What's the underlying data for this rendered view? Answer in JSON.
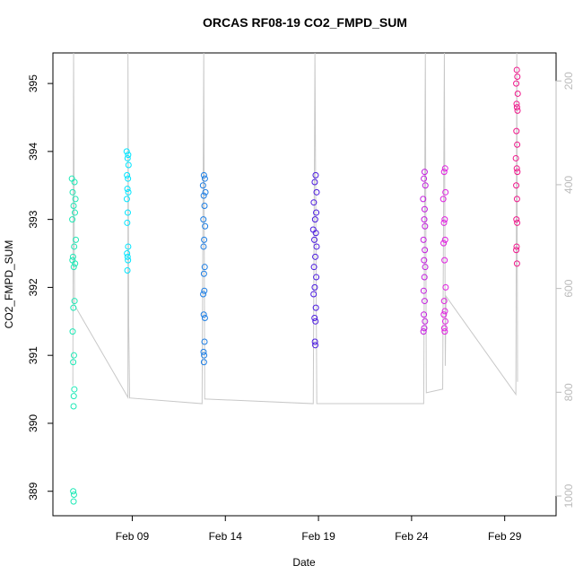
{
  "chart_data": {
    "type": "scatter",
    "title": "ORCAS RF08-19 CO2_FMPD_SUM",
    "x_label": "Date",
    "y_label": "CO2_FMPD_SUM",
    "xlim": [
      4.74,
      31.76
    ],
    "xticks": [
      {
        "value": 9,
        "label": "Feb 09"
      },
      {
        "value": 14,
        "label": "Feb 14"
      },
      {
        "value": 19,
        "label": "Feb 19"
      },
      {
        "value": 24,
        "label": "Feb 24"
      },
      {
        "value": 29,
        "label": "Feb 29"
      }
    ],
    "ylim": [
      388.64,
      395.45
    ],
    "yticks": [
      389,
      390,
      391,
      392,
      393,
      394,
      395
    ],
    "y2lim": [
      1038,
      146
    ],
    "y2ticks": [
      200,
      400,
      600,
      800,
      1000
    ],
    "y2_color": "#bbbbbb",
    "series": [
      {
        "color": "#1de9b6",
        "x": [
          5.76,
          5.9,
          5.8,
          5.95,
          5.85,
          5.92,
          5.78,
          5.97,
          5.88,
          5.82,
          5.93,
          5.86,
          5.79,
          5.9,
          5.84,
          5.8,
          5.87,
          5.83,
          5.89,
          5.86,
          5.85,
          5.83,
          5.87,
          5.85
        ],
        "values": [
          393.6,
          393.55,
          393.4,
          393.3,
          393.2,
          393.1,
          393.0,
          392.7,
          392.6,
          392.45,
          392.35,
          392.3,
          392.4,
          391.8,
          391.7,
          391.35,
          391.0,
          390.9,
          390.5,
          390.4,
          390.25,
          389.0,
          388.95,
          388.85
        ]
      },
      {
        "color": "#00e5ff",
        "x": [
          8.7,
          8.78,
          8.75,
          8.8,
          8.72,
          8.77,
          8.74,
          8.79,
          8.71,
          8.76,
          8.73,
          8.78,
          8.72,
          8.75,
          8.77,
          8.74
        ],
        "values": [
          394.0,
          393.95,
          393.9,
          393.8,
          393.65,
          393.6,
          393.45,
          393.4,
          393.3,
          393.1,
          392.95,
          392.6,
          392.5,
          392.45,
          392.4,
          392.25
        ]
      },
      {
        "color": "#1e7fe5",
        "x": [
          12.85,
          12.9,
          12.8,
          12.93,
          12.84,
          12.88,
          12.82,
          12.91,
          12.86,
          12.83,
          12.89,
          12.85,
          12.87,
          12.81,
          12.84,
          12.9,
          12.88,
          12.83,
          12.86,
          12.85
        ],
        "values": [
          393.65,
          393.6,
          393.5,
          393.4,
          393.35,
          393.2,
          393.0,
          392.9,
          392.7,
          392.6,
          392.3,
          392.2,
          391.95,
          391.9,
          391.6,
          391.55,
          391.2,
          391.05,
          391.0,
          390.9
        ]
      },
      {
        "color": "#4b1be0",
        "x": [
          18.85,
          18.8,
          18.9,
          18.75,
          18.88,
          18.82,
          18.72,
          18.86,
          18.78,
          18.9,
          18.83,
          18.76,
          18.88,
          18.8,
          18.74,
          18.86,
          18.79,
          18.84,
          18.81,
          18.83
        ],
        "values": [
          393.65,
          393.55,
          393.4,
          393.25,
          393.1,
          393.0,
          392.85,
          392.8,
          392.7,
          392.6,
          392.45,
          392.3,
          392.15,
          392.0,
          391.9,
          391.7,
          391.55,
          391.5,
          391.2,
          391.15
        ]
      },
      {
        "color": "#c41fe0",
        "x": [
          24.7,
          24.66,
          24.74,
          24.62,
          24.7,
          24.68,
          24.72,
          24.64,
          24.71,
          24.67,
          24.73,
          24.69,
          24.65,
          24.7,
          24.66,
          24.72,
          24.68,
          24.64
        ],
        "values": [
          393.7,
          393.6,
          393.5,
          393.3,
          393.15,
          393.0,
          392.9,
          392.7,
          392.55,
          392.4,
          392.3,
          392.15,
          391.95,
          391.8,
          391.6,
          391.5,
          391.4,
          391.35
        ]
      },
      {
        "color": "#e020e0",
        "x": [
          25.8,
          25.75,
          25.82,
          25.7,
          25.78,
          25.74,
          25.8,
          25.72,
          25.77,
          25.83,
          25.75,
          25.79,
          25.73,
          25.81,
          25.76,
          25.78
        ],
        "values": [
          393.75,
          393.7,
          393.4,
          393.3,
          393.0,
          392.95,
          392.7,
          392.65,
          392.4,
          392.0,
          391.8,
          391.65,
          391.6,
          391.5,
          391.4,
          391.35
        ]
      },
      {
        "color": "#f0188c",
        "x": [
          29.65,
          29.68,
          29.62,
          29.7,
          29.64,
          29.66,
          29.69,
          29.63,
          29.67,
          29.6,
          29.65,
          29.68,
          29.62,
          29.66,
          29.63,
          29.67,
          29.64,
          29.62,
          29.66
        ],
        "values": [
          395.2,
          395.1,
          395.0,
          394.85,
          394.7,
          394.65,
          394.6,
          394.3,
          394.1,
          393.9,
          393.75,
          393.7,
          393.5,
          393.3,
          393.0,
          392.95,
          392.6,
          392.55,
          392.35
        ]
      },
      {
        "type": "line",
        "axis": "y2",
        "color": "#c8c8c8",
        "x": [
          5.81,
          5.85,
          5.9,
          8.77,
          8.77,
          8.81,
          8.86,
          12.75,
          12.84,
          12.89,
          12.94,
          18.72,
          18.81,
          18.91,
          24.65,
          24.74,
          24.79,
          25.67,
          25.76,
          25.81,
          25.85,
          29.6,
          29.65,
          29.69
        ],
        "values": [
          787,
          146,
          632,
          810,
          146,
          670,
          811,
          822,
          146,
          813,
          813,
          822,
          146,
          822,
          822,
          146,
          801,
          794,
          146,
          749,
          615,
          804,
          146,
          780
        ]
      }
    ]
  }
}
